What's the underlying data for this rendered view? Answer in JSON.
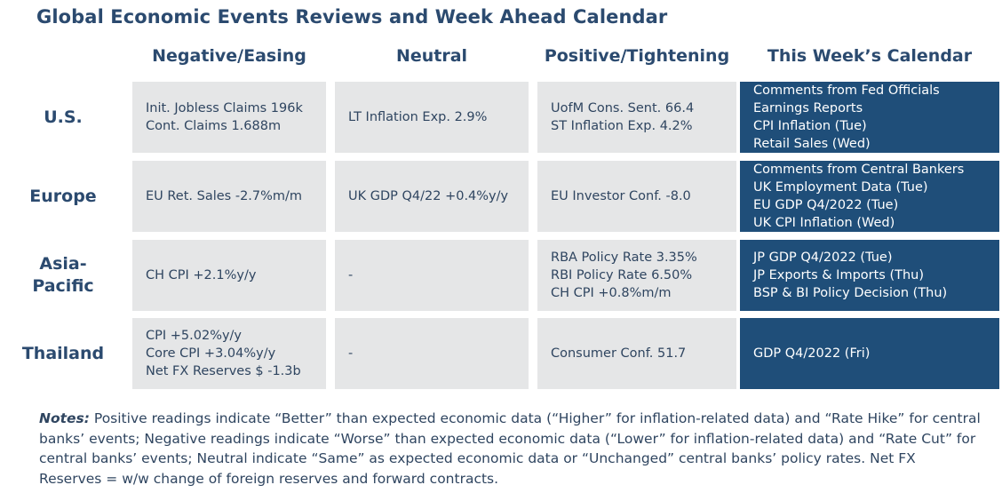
{
  "title": "Global Economic Events Reviews and Week Ahead Calendar",
  "columns": [
    "Negative/Easing",
    "Neutral",
    "Positive/Tightening",
    "This Week’s Calendar"
  ],
  "rows": [
    {
      "region": "U.S.",
      "negative": [
        "Init. Jobless Claims 196k",
        "Cont. Claims 1.688m"
      ],
      "neutral": [
        "LT Inflation Exp. 2.9%"
      ],
      "positive": [
        "UofM Cons. Sent. 66.4",
        "ST Inflation Exp. 4.2%"
      ],
      "calendar": [
        "Comments from Fed Officials",
        "Earnings Reports",
        "CPI Inflation (Tue)",
        "Retail Sales (Wed)"
      ]
    },
    {
      "region": "Europe",
      "negative": [
        "EU Ret. Sales -2.7%m/m"
      ],
      "neutral": [
        "UK GDP Q4/22 +0.4%y/y"
      ],
      "positive": [
        "EU Investor Conf. -8.0"
      ],
      "calendar": [
        "Comments from Central Bankers",
        "UK Employment Data (Tue)",
        "EU GDP Q4/2022 (Tue)",
        "UK CPI Inflation (Wed)"
      ]
    },
    {
      "region": "Asia-Pacific",
      "negative": [
        "CH CPI +2.1%y/y"
      ],
      "neutral": [
        "-"
      ],
      "positive": [
        "RBA Policy Rate 3.35%",
        "RBI Policy Rate 6.50%",
        "CH CPI +0.8%m/m"
      ],
      "calendar": [
        "JP GDP Q4/2022 (Tue)",
        "JP Exports & Imports (Thu)",
        "BSP & BI Policy Decision (Thu)"
      ]
    },
    {
      "region": "Thailand",
      "negative": [
        "CPI +5.02%y/y",
        "Core CPI +3.04%y/y",
        "Net FX Reserves $ -1.3b"
      ],
      "neutral": [
        "-"
      ],
      "positive": [
        "Consumer Conf. 51.7"
      ],
      "calendar": [
        "GDP Q4/2022 (Fri)"
      ]
    }
  ],
  "notes": {
    "label": "Notes:",
    "text": " Positive readings indicate “Better” than expected economic data (“Higher” for inflation-related data) and “Rate Hike” for central banks’ events; Negative readings indicate “Worse” than expected economic data (“Lower” for inflation-related data) and “Rate Cut” for central banks’ events; Neutral indicate “Same” as expected economic data or “Unchanged” central banks’ policy rates. Net FX Reserves = w/w change of foreign reserves and forward contracts."
  },
  "colors": {
    "heading": "#2b4a6f",
    "cell_grey": "#e5e6e7",
    "calendar_blue": "#1f4e79"
  }
}
